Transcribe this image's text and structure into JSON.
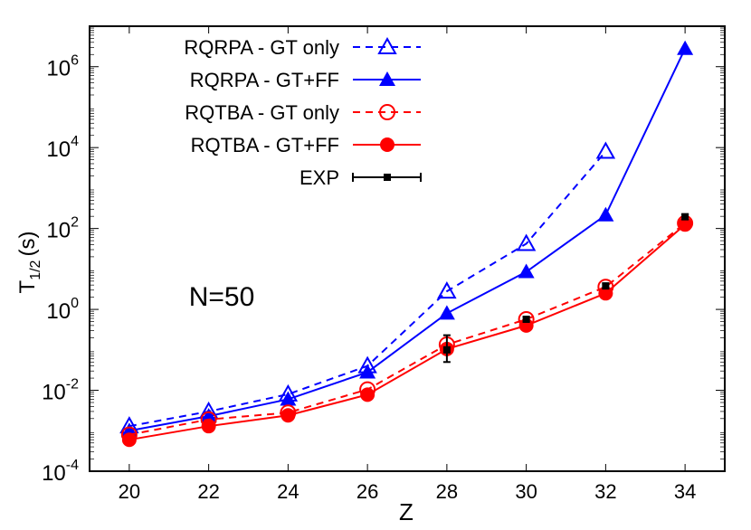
{
  "chart_data": {
    "type": "line",
    "title": "",
    "xlabel": "Z",
    "ylabel": "T",
    "ylabel_sub": "1/2",
    "ylabel_unit": "(s)",
    "annotation": "N=50",
    "xlim": [
      19,
      35
    ],
    "ylim": [
      0.0001,
      10000000
    ],
    "yscale": "log",
    "xticks": [
      20,
      22,
      24,
      26,
      28,
      30,
      32,
      34
    ],
    "yticks": [
      {
        "base": "10",
        "exp": "-4",
        "value": 0.0001
      },
      {
        "base": "10",
        "exp": "-2",
        "value": 0.01
      },
      {
        "base": "10",
        "exp": "0",
        "value": 1
      },
      {
        "base": "10",
        "exp": "2",
        "value": 100
      },
      {
        "base": "10",
        "exp": "4",
        "value": 10000
      },
      {
        "base": "10",
        "exp": "6",
        "value": 1000000
      }
    ],
    "grid": false,
    "legend_position": "top-left",
    "series": [
      {
        "name": "RQRPA - GT only",
        "color": "#0000ff",
        "dash": true,
        "marker": "open-triangle",
        "x": [
          20,
          22,
          24,
          26,
          28,
          30,
          32
        ],
        "y": [
          0.0013,
          0.003,
          0.008,
          0.04,
          2.8,
          42,
          8000
        ]
      },
      {
        "name": "RQRPA - GT+FF",
        "color": "#0000ff",
        "dash": false,
        "marker": "filled-triangle",
        "x": [
          20,
          22,
          24,
          26,
          28,
          30,
          32,
          34
        ],
        "y": [
          0.001,
          0.0023,
          0.006,
          0.028,
          0.8,
          8.5,
          215,
          2800000
        ]
      },
      {
        "name": "RQTBA - GT only",
        "color": "#ff0000",
        "dash": true,
        "marker": "open-circle",
        "x": [
          20,
          22,
          24,
          26,
          28,
          30,
          32,
          34
        ],
        "y": [
          0.0008,
          0.0019,
          0.0028,
          0.0105,
          0.135,
          0.57,
          3.6,
          135
        ]
      },
      {
        "name": "RQTBA - GT+FF",
        "color": "#ff0000",
        "dash": false,
        "marker": "filled-circle",
        "x": [
          20,
          22,
          24,
          26,
          28,
          30,
          32,
          34
        ],
        "y": [
          0.0006,
          0.0013,
          0.0024,
          0.0078,
          0.105,
          0.4,
          2.5,
          125
        ]
      },
      {
        "name": "EXP",
        "color": "#000000",
        "dash": false,
        "marker": "errorbar",
        "x": [
          28,
          30,
          32,
          34
        ],
        "y": [
          0.1,
          0.57,
          3.8,
          195
        ],
        "ylow": [
          0.05,
          0.5,
          3.3,
          170
        ],
        "yhigh": [
          0.23,
          0.65,
          4.4,
          225
        ]
      }
    ]
  }
}
